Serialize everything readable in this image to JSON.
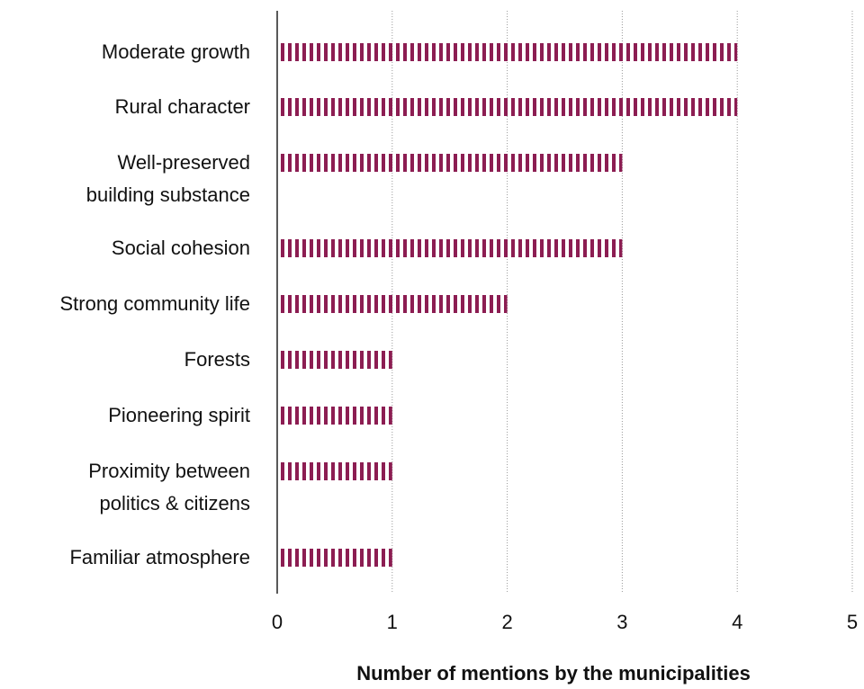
{
  "chart_data": {
    "type": "barh",
    "categories": [
      "Moderate growth",
      "Rural character",
      "Well-preserved\nbuilding substance",
      "Social cohesion",
      "Strong community life",
      "Forests",
      "Pioneering spirit",
      "Proximity between\npolitics & citizens",
      "Familiar atmosphere"
    ],
    "values": [
      4,
      4,
      3,
      3,
      2,
      1,
      1,
      1,
      1
    ],
    "color": "#8c1d52",
    "xlabel": "Number of mentions by the municipalities",
    "xlim": [
      0,
      5
    ],
    "xticks": [
      0,
      1,
      2,
      3,
      4,
      5
    ],
    "grid": true
  }
}
